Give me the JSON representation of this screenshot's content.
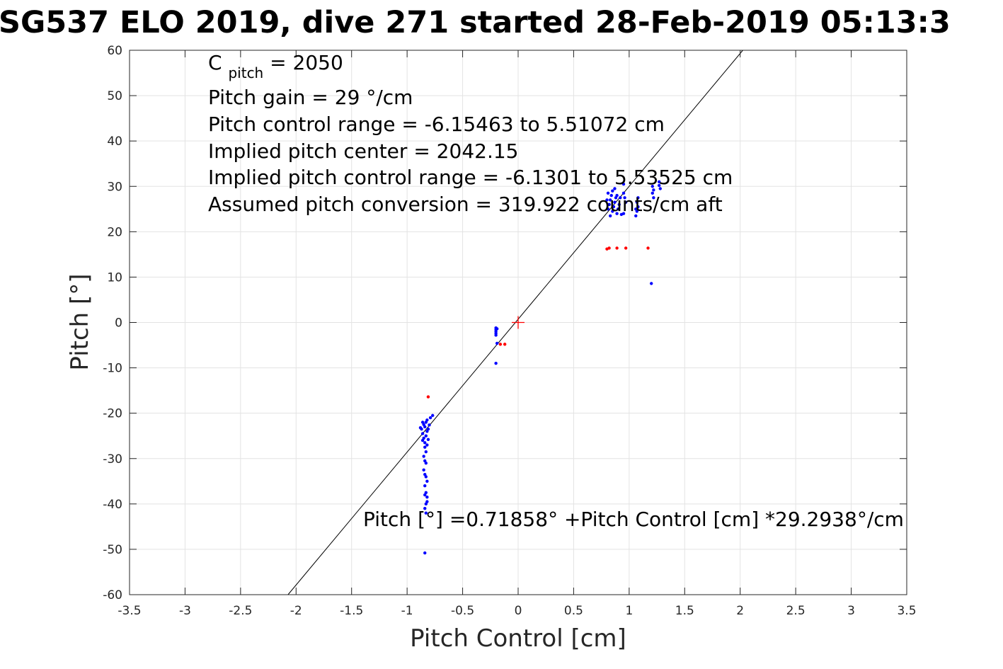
{
  "chart_data": {
    "type": "scatter",
    "title": "SG537 ELO 2019, dive 271 started 28-Feb-2019 05:13:3",
    "xlabel": "Pitch Control [cm]",
    "ylabel": "Pitch [°]",
    "xlim": [
      -3.5,
      3.5
    ],
    "ylim": [
      -60,
      60
    ],
    "xticks": [
      -3.5,
      -3,
      -2.5,
      -2,
      -1.5,
      -1,
      -0.5,
      0,
      0.5,
      1,
      1.5,
      2,
      2.5,
      3,
      3.5
    ],
    "xtick_labels": [
      "-3.5",
      "-3",
      "-2.5",
      "-2",
      "-1.5",
      "-1",
      "-0.5",
      "0",
      "0.5",
      "1",
      "1.5",
      "2",
      "2.5",
      "3",
      "3.5"
    ],
    "yticks": [
      -60,
      -50,
      -40,
      -30,
      -20,
      -10,
      0,
      10,
      20,
      30,
      40,
      50,
      60
    ],
    "ytick_labels": [
      "-60",
      "-50",
      "-40",
      "-30",
      "-20",
      "-10",
      "0",
      "10",
      "20",
      "30",
      "40",
      "50",
      "60"
    ],
    "grid": true,
    "annotations": {
      "cpitch_main": "C",
      "cpitch_sub": "pitch",
      "cpitch_value": " = 2050",
      "gain": "Pitch gain = 29 °/cm",
      "control_range": "Pitch control range = -6.15463 to 5.51072 cm",
      "center": "Implied pitch center = 2042.15",
      "implied_range": "Implied pitch control range = -6.1301 to 5.53525 cm",
      "conversion": "Assumed pitch conversion = 319.922 counts/cm aft",
      "fit": "Pitch [°] =0.71858° +Pitch Control [cm] *29.2938°/cm"
    },
    "fit_line": {
      "intercept": 0.71858,
      "slope": 29.2938,
      "color": "#000000"
    },
    "origin_marker": {
      "x": 0,
      "y": 0,
      "color": "#ff0000"
    },
    "series": [
      {
        "color": "#0000ff",
        "points": [
          [
            -0.87,
            -23.5
          ],
          [
            -0.86,
            -24.5
          ],
          [
            -0.85,
            -22.5
          ],
          [
            -0.84,
            -23.0
          ],
          [
            -0.83,
            -22.0
          ],
          [
            -0.82,
            -21.5
          ],
          [
            -0.85,
            -25.5
          ],
          [
            -0.84,
            -26.5
          ],
          [
            -0.83,
            -25.0
          ],
          [
            -0.82,
            -24.0
          ],
          [
            -0.81,
            -23.5
          ],
          [
            -0.86,
            -22.0
          ],
          [
            -0.84,
            -27.5
          ],
          [
            -0.83,
            -28.5
          ],
          [
            -0.85,
            -29.5
          ],
          [
            -0.84,
            -30.5
          ],
          [
            -0.83,
            -31.0
          ],
          [
            -0.82,
            -27.0
          ],
          [
            -0.85,
            -32.5
          ],
          [
            -0.84,
            -33.5
          ],
          [
            -0.83,
            -34.0
          ],
          [
            -0.82,
            -35.0
          ],
          [
            -0.84,
            -36.0
          ],
          [
            -0.83,
            -37.5
          ],
          [
            -0.82,
            -38.5
          ],
          [
            -0.83,
            -40.0
          ],
          [
            -0.84,
            -41.0
          ],
          [
            -0.83,
            -42.0
          ],
          [
            -0.82,
            -39.5
          ],
          [
            -0.84,
            -38.0
          ],
          [
            -0.88,
            -23.2
          ],
          [
            -0.8,
            -22.6
          ],
          [
            -0.79,
            -21.0
          ],
          [
            -0.77,
            -20.5
          ],
          [
            -0.86,
            -26.0
          ],
          [
            -0.81,
            -25.8
          ],
          [
            -0.84,
            -50.8
          ],
          [
            -0.2,
            -1.2
          ],
          [
            -0.2,
            -1.6
          ],
          [
            -0.2,
            -2.0
          ],
          [
            -0.2,
            -2.4
          ],
          [
            -0.2,
            -2.8
          ],
          [
            -0.19,
            -1.4
          ],
          [
            -0.19,
            -4.6
          ],
          [
            -0.2,
            -9.0
          ],
          [
            0.81,
            25.0
          ],
          [
            0.82,
            26.0
          ],
          [
            0.83,
            27.0
          ],
          [
            0.84,
            28.0
          ],
          [
            0.85,
            29.0
          ],
          [
            0.86,
            25.5
          ],
          [
            0.87,
            26.5
          ],
          [
            0.88,
            27.5
          ],
          [
            0.89,
            24.0
          ],
          [
            0.9,
            25.0
          ],
          [
            0.91,
            26.0
          ],
          [
            0.92,
            27.5
          ],
          [
            0.83,
            23.5
          ],
          [
            0.85,
            24.5
          ],
          [
            0.87,
            29.5
          ],
          [
            0.81,
            28.5
          ],
          [
            0.8,
            27.0
          ],
          [
            0.89,
            28.0
          ],
          [
            0.95,
            30.5
          ],
          [
            0.95,
            28.5
          ],
          [
            0.96,
            27.5
          ],
          [
            0.95,
            24.0
          ],
          [
            0.93,
            23.8
          ],
          [
            0.97,
            26.5
          ],
          [
            1.06,
            23.5
          ],
          [
            1.07,
            24.5
          ],
          [
            1.08,
            25.5
          ],
          [
            1.07,
            26.5
          ],
          [
            1.08,
            27.5
          ],
          [
            1.06,
            25.0
          ],
          [
            1.21,
            30.0
          ],
          [
            1.21,
            28.5
          ],
          [
            1.22,
            27.5
          ],
          [
            1.22,
            29.2
          ],
          [
            1.27,
            31.0
          ],
          [
            1.28,
            29.5
          ],
          [
            1.27,
            30.2
          ],
          [
            1.2,
            8.6
          ]
        ]
      },
      {
        "color": "#ff0000",
        "points": [
          [
            -0.81,
            -16.4
          ],
          [
            -0.16,
            -4.8
          ],
          [
            -0.12,
            -4.8
          ],
          [
            0.8,
            16.2
          ],
          [
            0.82,
            16.4
          ],
          [
            0.89,
            16.4
          ],
          [
            0.97,
            16.4
          ],
          [
            1.17,
            16.4
          ]
        ]
      }
    ]
  }
}
